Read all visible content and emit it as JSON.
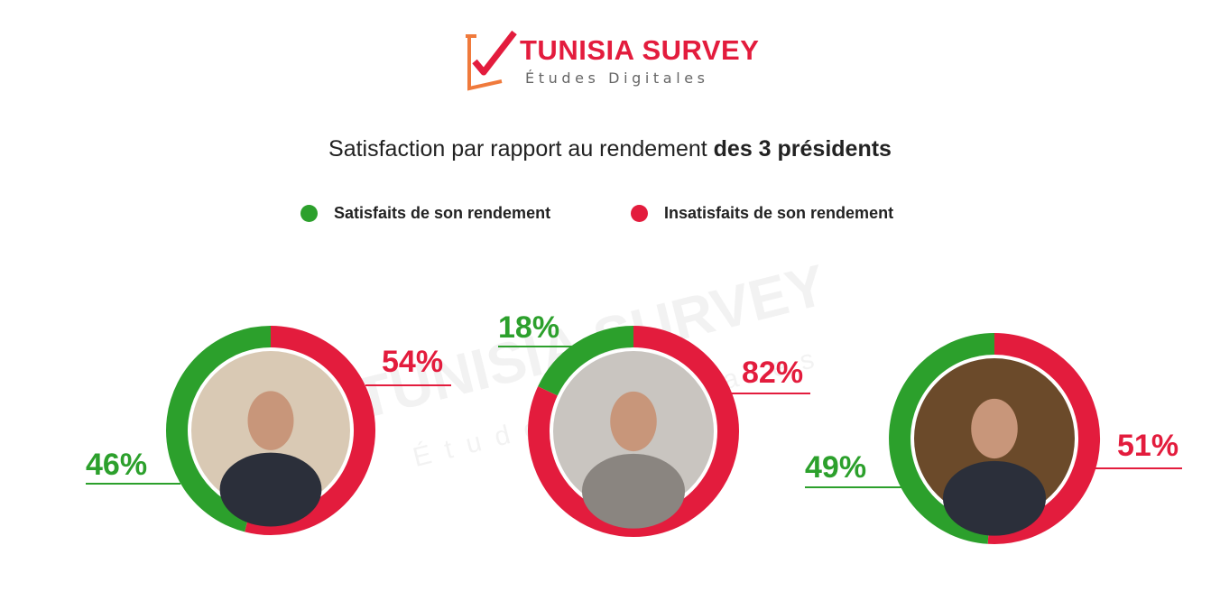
{
  "logo": {
    "brand": "TUNISIA SURVEY",
    "tagline": "Études Digitales"
  },
  "title": {
    "regular": "Satisfaction par rapport au rendement ",
    "bold": "des 3 présidents"
  },
  "watermark": {
    "brand": "TUNISIA SURVEY",
    "tagline": "Études Digitales"
  },
  "colors": {
    "satisfied": "#2ca02c",
    "unsatisfied": "#e31c3d",
    "brand": "#e31c3d"
  },
  "chart_data": {
    "type": "pie",
    "style": "donut",
    "title": "Satisfaction par rapport au rendement des 3 présidents",
    "legend": [
      "Satisfaits de son rendement",
      "Insatisfaits de son rendement"
    ],
    "legend_position": "top-center",
    "donuts": [
      {
        "photo": "portrait",
        "slices": [
          {
            "label": "Satisfaits de son rendement",
            "value": 46,
            "display": "46%"
          },
          {
            "label": "Insatisfaits de son rendement",
            "value": 54,
            "display": "54%"
          }
        ]
      },
      {
        "photo": "portrait",
        "slices": [
          {
            "label": "Satisfaits de son rendement",
            "value": 18,
            "display": "18%"
          },
          {
            "label": "Insatisfaits de son rendement",
            "value": 82,
            "display": "82%"
          }
        ]
      },
      {
        "photo": "portrait",
        "slices": [
          {
            "label": "Satisfaits de son rendement",
            "value": 49,
            "display": "49%"
          },
          {
            "label": "Insatisfaits de son rendement",
            "value": 51,
            "display": "51%"
          }
        ]
      }
    ]
  }
}
